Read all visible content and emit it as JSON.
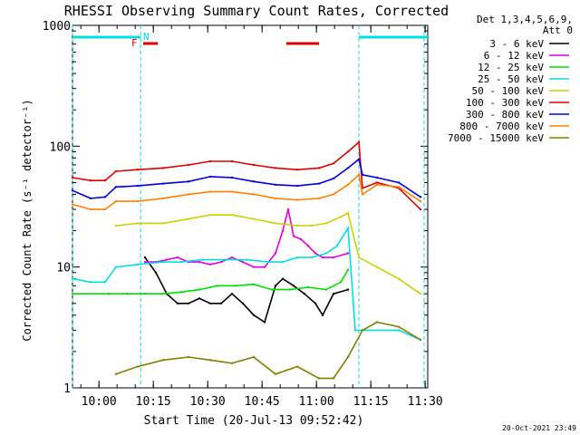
{
  "chart_data": {
    "type": "line",
    "title": "RHESSI Observing Summary Count Rates, Corrected",
    "ylabel": "Corrected Count Rate (s⁻¹ detector⁻¹)",
    "xlabel": "Start Time (20-Jul-13 09:52:42)",
    "yscale": "log",
    "ylim": [
      1,
      1000
    ],
    "xlim_minutes": [
      0,
      98
    ],
    "y_ticks": [
      {
        "value": 1000,
        "label": "1000"
      },
      {
        "value": 100,
        "label": "100"
      },
      {
        "value": 10,
        "label": "10"
      },
      {
        "value": 1,
        "label": "1"
      }
    ],
    "x_ticks": [
      {
        "minute": 7.3,
        "label": "10:00"
      },
      {
        "minute": 22.3,
        "label": "10:15"
      },
      {
        "minute": 37.3,
        "label": "10:30"
      },
      {
        "minute": 52.3,
        "label": "10:45"
      },
      {
        "minute": 67.3,
        "label": "11:00"
      },
      {
        "minute": 82.3,
        "label": "11:15"
      },
      {
        "minute": 97.3,
        "label": "11:30"
      }
    ],
    "legend_title": [
      "Det 1,3,4,5,6,9,",
      "Att 0"
    ],
    "footer_timestamp": "20-Oct-2021 23:49",
    "flag_labels": {
      "F": "F",
      "N": "N"
    },
    "series": [
      {
        "name": "3 - 6 keV",
        "color": "#000000",
        "points": [
          [
            20,
            12
          ],
          [
            23,
            9
          ],
          [
            26,
            6
          ],
          [
            29,
            5
          ],
          [
            32,
            5
          ],
          [
            35,
            5.5
          ],
          [
            38,
            5
          ],
          [
            41,
            5
          ],
          [
            44,
            6
          ],
          [
            47,
            5
          ],
          [
            50,
            4
          ],
          [
            53,
            3.5
          ],
          [
            56,
            7
          ],
          [
            58,
            8
          ],
          [
            61,
            7
          ],
          [
            64,
            6
          ],
          [
            67,
            5
          ],
          [
            69,
            4
          ],
          [
            72,
            6
          ],
          [
            76,
            6.5
          ]
        ]
      },
      {
        "name": "6 - 12 keV",
        "color": "#e000e0",
        "points": [
          [
            20,
            11
          ],
          [
            23,
            11
          ],
          [
            26,
            11.5
          ],
          [
            29,
            12
          ],
          [
            32,
            11
          ],
          [
            35,
            11
          ],
          [
            38,
            10.5
          ],
          [
            41,
            11
          ],
          [
            44,
            12
          ],
          [
            47,
            11
          ],
          [
            50,
            10
          ],
          [
            53,
            10
          ],
          [
            56,
            13
          ],
          [
            58,
            20
          ],
          [
            59.5,
            30
          ],
          [
            61,
            18
          ],
          [
            63,
            17
          ],
          [
            65,
            15
          ],
          [
            67,
            13
          ],
          [
            69,
            12
          ],
          [
            72,
            12
          ],
          [
            76,
            13
          ]
        ]
      },
      {
        "name": "12 - 25 keV",
        "color": "#00e000",
        "points": [
          [
            0,
            6
          ],
          [
            10,
            6
          ],
          [
            15,
            6
          ],
          [
            20,
            6
          ],
          [
            25,
            6
          ],
          [
            30,
            6.2
          ],
          [
            35,
            6.5
          ],
          [
            40,
            7
          ],
          [
            45,
            7
          ],
          [
            50,
            7.2
          ],
          [
            55,
            6.5
          ],
          [
            60,
            6.5
          ],
          [
            65,
            6.8
          ],
          [
            70,
            6.5
          ],
          [
            74,
            7.5
          ],
          [
            76,
            9.5
          ]
        ]
      },
      {
        "name": "25 - 50 keV",
        "color": "#00e0e0",
        "points": [
          [
            0,
            8
          ],
          [
            5,
            7.5
          ],
          [
            9,
            7.5
          ],
          [
            12,
            10
          ],
          [
            18,
            10.5
          ],
          [
            25,
            11
          ],
          [
            30,
            11
          ],
          [
            36,
            11.5
          ],
          [
            42,
            11.5
          ],
          [
            48,
            11.5
          ],
          [
            54,
            11
          ],
          [
            58,
            11
          ],
          [
            62,
            12
          ],
          [
            66,
            12
          ],
          [
            70,
            13
          ],
          [
            73,
            15
          ],
          [
            76,
            21
          ],
          [
            78,
            3
          ],
          [
            90,
            3
          ],
          [
            96,
            2.5
          ]
        ]
      },
      {
        "name": "50 - 100 keV",
        "color": "#d0d000",
        "points": [
          [
            12,
            22
          ],
          [
            18,
            23
          ],
          [
            25,
            23
          ],
          [
            32,
            25
          ],
          [
            38,
            27
          ],
          [
            44,
            27
          ],
          [
            50,
            25
          ],
          [
            56,
            23
          ],
          [
            62,
            22
          ],
          [
            66,
            22
          ],
          [
            70,
            23
          ],
          [
            74,
            26
          ],
          [
            76,
            28
          ],
          [
            79,
            12
          ],
          [
            84,
            10
          ],
          [
            90,
            8
          ],
          [
            96,
            6
          ]
        ]
      },
      {
        "name": "100 - 300 keV",
        "color": "#e00000",
        "points": [
          [
            0,
            55
          ],
          [
            5,
            52
          ],
          [
            9,
            52
          ],
          [
            12,
            62
          ],
          [
            18,
            64
          ],
          [
            25,
            66
          ],
          [
            32,
            70
          ],
          [
            38,
            75
          ],
          [
            44,
            75
          ],
          [
            50,
            70
          ],
          [
            56,
            66
          ],
          [
            62,
            64
          ],
          [
            68,
            66
          ],
          [
            72,
            72
          ],
          [
            76,
            90
          ],
          [
            79,
            108
          ],
          [
            80,
            45
          ],
          [
            84,
            50
          ],
          [
            90,
            45
          ],
          [
            96,
            30
          ]
        ]
      },
      {
        "name": "300 - 800 keV",
        "color": "#0000e0",
        "points": [
          [
            0,
            43
          ],
          [
            5,
            37
          ],
          [
            9,
            38
          ],
          [
            12,
            46
          ],
          [
            18,
            47
          ],
          [
            25,
            49
          ],
          [
            32,
            51
          ],
          [
            38,
            56
          ],
          [
            44,
            55
          ],
          [
            50,
            51
          ],
          [
            56,
            48
          ],
          [
            62,
            47
          ],
          [
            68,
            49
          ],
          [
            72,
            54
          ],
          [
            76,
            66
          ],
          [
            79,
            78
          ],
          [
            80,
            58
          ],
          [
            84,
            55
          ],
          [
            90,
            50
          ],
          [
            96,
            38
          ]
        ]
      },
      {
        "name": "800 - 7000 keV",
        "color": "#ff8000",
        "points": [
          [
            0,
            33
          ],
          [
            5,
            30
          ],
          [
            9,
            30
          ],
          [
            12,
            35
          ],
          [
            18,
            35
          ],
          [
            25,
            37
          ],
          [
            32,
            40
          ],
          [
            38,
            42
          ],
          [
            44,
            42
          ],
          [
            50,
            40
          ],
          [
            56,
            37
          ],
          [
            62,
            36
          ],
          [
            68,
            37
          ],
          [
            72,
            40
          ],
          [
            76,
            48
          ],
          [
            79,
            58
          ],
          [
            80,
            40
          ],
          [
            84,
            48
          ],
          [
            90,
            46
          ],
          [
            96,
            35
          ]
        ]
      },
      {
        "name": "7000 - 15000 keV",
        "color": "#808000",
        "points": [
          [
            12,
            1.3
          ],
          [
            18,
            1.5
          ],
          [
            25,
            1.7
          ],
          [
            32,
            1.8
          ],
          [
            38,
            1.7
          ],
          [
            44,
            1.6
          ],
          [
            50,
            1.8
          ],
          [
            56,
            1.3
          ],
          [
            62,
            1.5
          ],
          [
            68,
            1.2
          ],
          [
            72,
            1.2
          ],
          [
            76,
            1.8
          ],
          [
            80,
            3
          ],
          [
            84,
            3.5
          ],
          [
            90,
            3.2
          ],
          [
            96,
            2.5
          ]
        ]
      }
    ],
    "flag_segments": [
      {
        "flag": "F",
        "color": "#e00000",
        "ranges": [
          [
            19.5,
            23.5
          ],
          [
            59,
            68
          ]
        ]
      },
      {
        "flag": "N",
        "color": "#00e0e0",
        "ranges": [
          [
            0,
            18.8
          ],
          [
            79,
            98
          ]
        ]
      }
    ],
    "vertical_markers_minutes": [
      0,
      18.8,
      79,
      97
    ]
  }
}
